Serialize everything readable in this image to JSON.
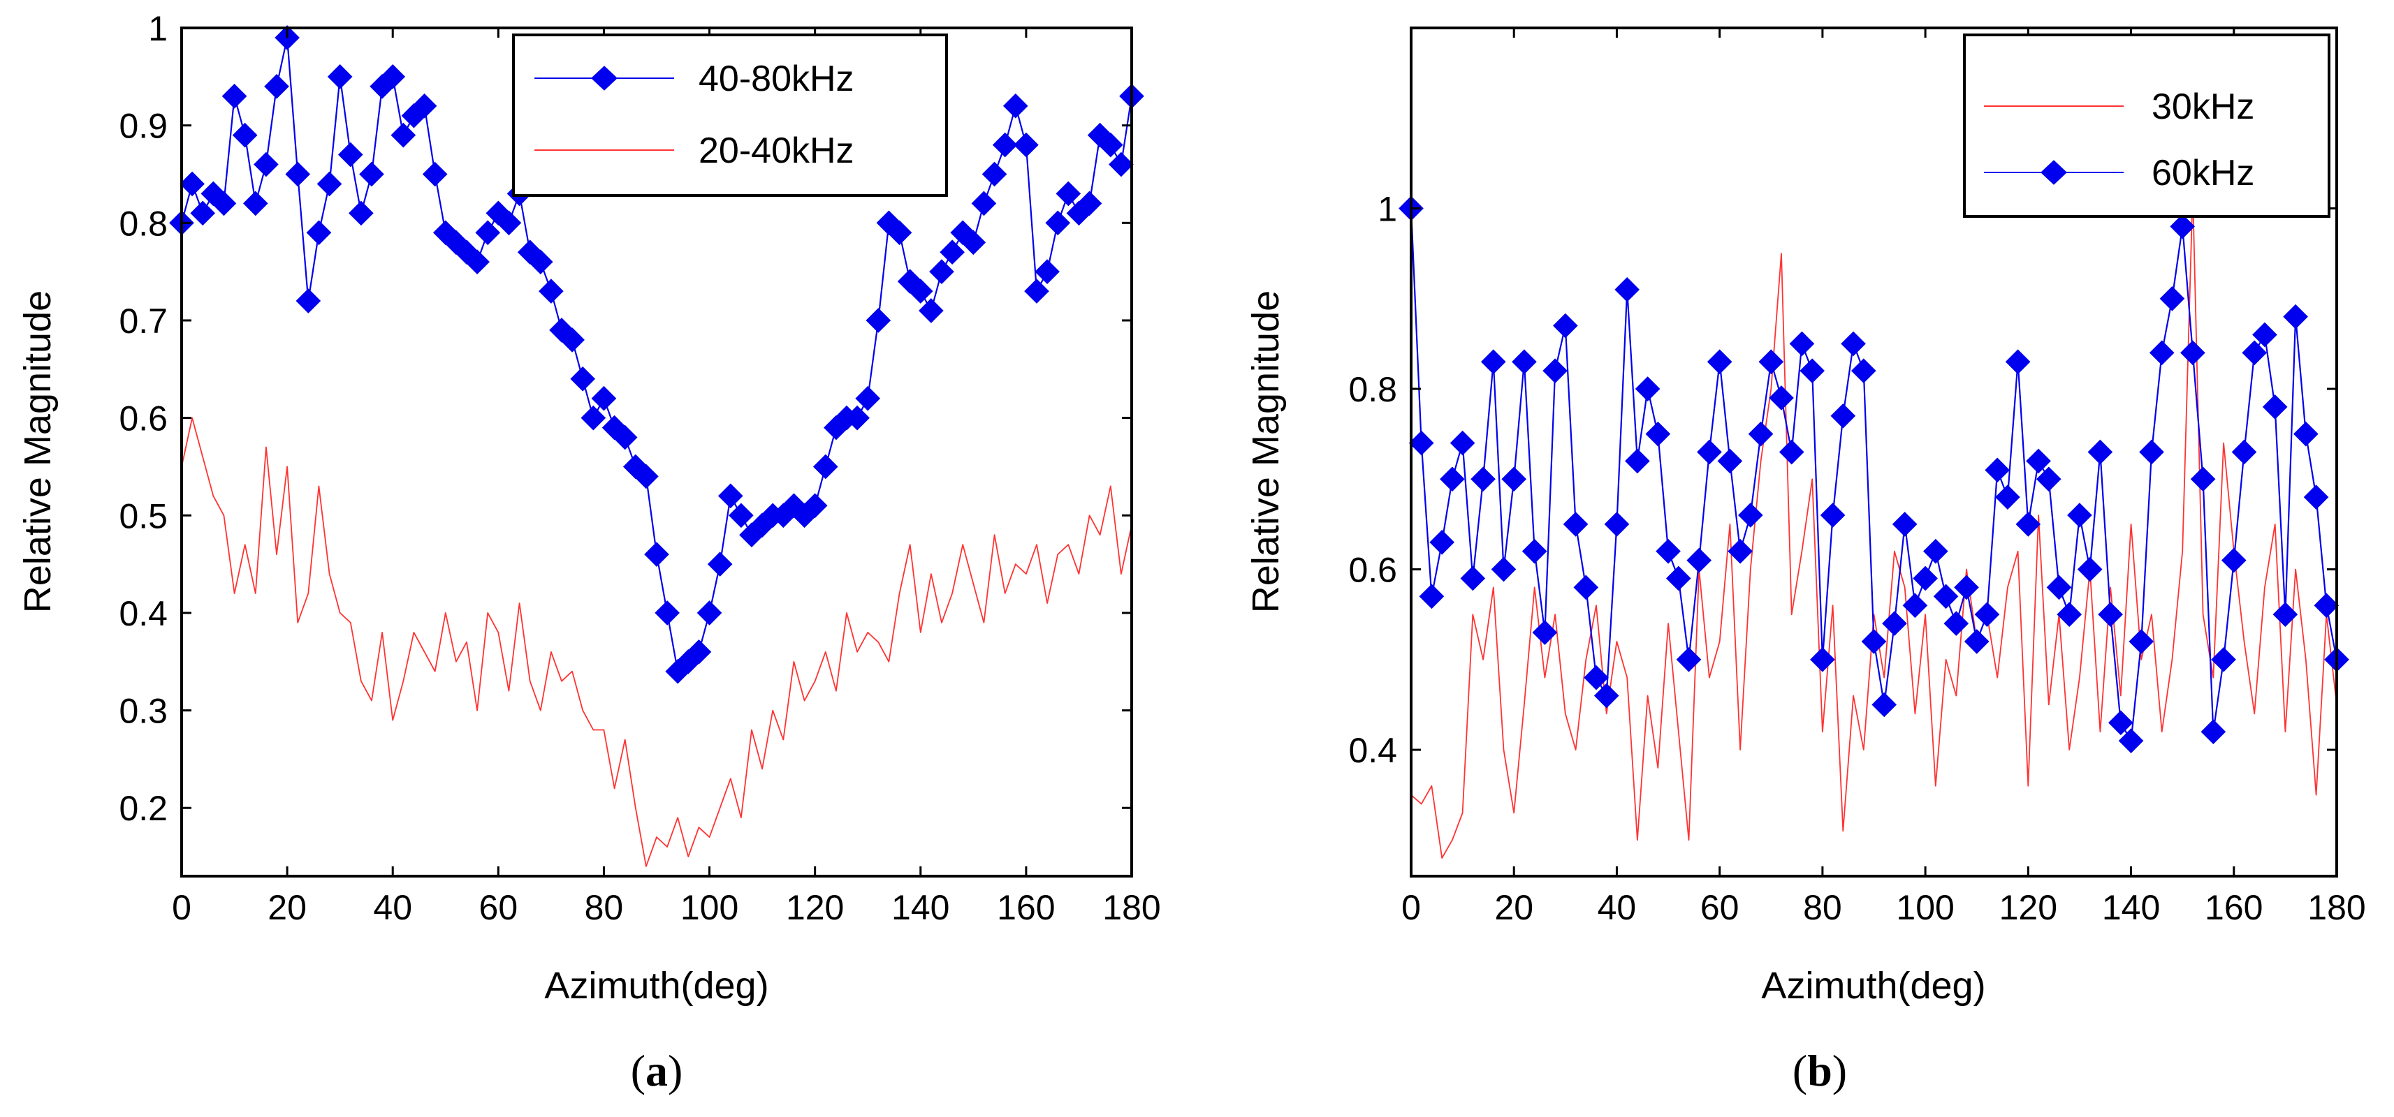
{
  "chart_data": [
    {
      "type": "line",
      "caption": {
        "open": "(",
        "letter": "a",
        "close": ")"
      },
      "xlabel": "Azimuth(deg)",
      "ylabel": "Relative Magnitude",
      "xlim": [
        0,
        180
      ],
      "ylim": [
        0.13,
        1.0
      ],
      "xticks": [
        0,
        20,
        40,
        60,
        80,
        100,
        120,
        140,
        160,
        180
      ],
      "yticks": [
        0.2,
        0.3,
        0.4,
        0.5,
        0.6,
        0.7,
        0.8,
        0.9,
        1
      ],
      "ytick_labels": [
        "0.2",
        "0.3",
        "0.4",
        "0.5",
        "0.6",
        "0.7",
        "0.8",
        "0.9",
        "1"
      ],
      "legend_position": "top-right",
      "series": [
        {
          "name": "40-80kHz",
          "color": "#0000ee",
          "marker": "diamond",
          "x": [
            0,
            2,
            4,
            6,
            8,
            10,
            12,
            14,
            16,
            18,
            20,
            22,
            24,
            26,
            28,
            30,
            32,
            34,
            36,
            38,
            40,
            42,
            44,
            46,
            48,
            50,
            52,
            54,
            56,
            58,
            60,
            62,
            64,
            66,
            68,
            70,
            72,
            74,
            76,
            78,
            80,
            82,
            84,
            86,
            88,
            90,
            92,
            94,
            96,
            98,
            100,
            102,
            104,
            106,
            108,
            110,
            112,
            114,
            116,
            118,
            120,
            122,
            124,
            126,
            128,
            130,
            132,
            134,
            136,
            138,
            140,
            142,
            144,
            146,
            148,
            150,
            152,
            154,
            156,
            158,
            160,
            162,
            164,
            166,
            168,
            170,
            172,
            174,
            176,
            178,
            180
          ],
          "values": [
            0.8,
            0.84,
            0.81,
            0.83,
            0.82,
            0.93,
            0.89,
            0.82,
            0.86,
            0.94,
            0.99,
            0.85,
            0.72,
            0.79,
            0.84,
            0.95,
            0.87,
            0.81,
            0.85,
            0.94,
            0.95,
            0.89,
            0.91,
            0.92,
            0.85,
            0.79,
            0.78,
            0.77,
            0.76,
            0.79,
            0.81,
            0.8,
            0.83,
            0.77,
            0.76,
            0.73,
            0.69,
            0.68,
            0.64,
            0.6,
            0.62,
            0.59,
            0.58,
            0.55,
            0.54,
            0.46,
            0.4,
            0.34,
            0.35,
            0.36,
            0.4,
            0.45,
            0.52,
            0.5,
            0.48,
            0.49,
            0.5,
            0.5,
            0.51,
            0.5,
            0.51,
            0.55,
            0.59,
            0.6,
            0.6,
            0.62,
            0.7,
            0.8,
            0.79,
            0.74,
            0.73,
            0.71,
            0.75,
            0.77,
            0.79,
            0.78,
            0.82,
            0.85,
            0.88,
            0.92,
            0.88,
            0.73,
            0.75,
            0.8,
            0.83,
            0.81,
            0.82,
            0.89,
            0.88,
            0.86,
            0.93
          ]
        },
        {
          "name": "20-40kHz",
          "color": "#ff3333",
          "marker": "none",
          "x": [
            0,
            2,
            4,
            6,
            8,
            10,
            12,
            14,
            16,
            18,
            20,
            22,
            24,
            26,
            28,
            30,
            32,
            34,
            36,
            38,
            40,
            42,
            44,
            46,
            48,
            50,
            52,
            54,
            56,
            58,
            60,
            62,
            64,
            66,
            68,
            70,
            72,
            74,
            76,
            78,
            80,
            82,
            84,
            86,
            88,
            90,
            92,
            94,
            96,
            98,
            100,
            102,
            104,
            106,
            108,
            110,
            112,
            114,
            116,
            118,
            120,
            122,
            124,
            126,
            128,
            130,
            132,
            134,
            136,
            138,
            140,
            142,
            144,
            146,
            148,
            150,
            152,
            154,
            156,
            158,
            160,
            162,
            164,
            166,
            168,
            170,
            172,
            174,
            176,
            178,
            180
          ],
          "values": [
            0.55,
            0.6,
            0.56,
            0.52,
            0.5,
            0.42,
            0.47,
            0.42,
            0.57,
            0.46,
            0.55,
            0.39,
            0.42,
            0.53,
            0.44,
            0.4,
            0.39,
            0.33,
            0.31,
            0.38,
            0.29,
            0.33,
            0.38,
            0.36,
            0.34,
            0.4,
            0.35,
            0.37,
            0.3,
            0.4,
            0.38,
            0.32,
            0.41,
            0.33,
            0.3,
            0.36,
            0.33,
            0.34,
            0.3,
            0.28,
            0.28,
            0.22,
            0.27,
            0.2,
            0.14,
            0.17,
            0.16,
            0.19,
            0.15,
            0.18,
            0.17,
            0.2,
            0.23,
            0.19,
            0.28,
            0.24,
            0.3,
            0.27,
            0.35,
            0.31,
            0.33,
            0.36,
            0.32,
            0.4,
            0.36,
            0.38,
            0.37,
            0.35,
            0.42,
            0.47,
            0.38,
            0.44,
            0.39,
            0.42,
            0.47,
            0.43,
            0.39,
            0.48,
            0.42,
            0.45,
            0.44,
            0.47,
            0.41,
            0.46,
            0.47,
            0.44,
            0.5,
            0.48,
            0.53,
            0.44,
            0.49
          ]
        }
      ]
    },
    {
      "type": "line",
      "caption": {
        "open": "(",
        "letter": "b",
        "close": ")"
      },
      "xlabel": "Azimuth(deg)",
      "ylabel": "Relative Magnitude",
      "xlim": [
        0,
        180
      ],
      "ylim": [
        0.26,
        1.2
      ],
      "xticks": [
        0,
        20,
        40,
        60,
        80,
        100,
        120,
        140,
        160,
        180
      ],
      "yticks": [
        0.4,
        0.6,
        0.8,
        1.0
      ],
      "ytick_labels": [
        "0.4",
        "0.6",
        "0.8",
        "1"
      ],
      "legend_position": "top-right",
      "series": [
        {
          "name": "30kHz",
          "color": "#ff3333",
          "marker": "none",
          "x": [
            0,
            2,
            4,
            6,
            8,
            10,
            12,
            14,
            16,
            18,
            20,
            22,
            24,
            26,
            28,
            30,
            32,
            34,
            36,
            38,
            40,
            42,
            44,
            46,
            48,
            50,
            52,
            54,
            56,
            58,
            60,
            62,
            64,
            66,
            68,
            70,
            72,
            74,
            76,
            78,
            80,
            82,
            84,
            86,
            88,
            90,
            92,
            94,
            96,
            98,
            100,
            102,
            104,
            106,
            108,
            110,
            112,
            114,
            116,
            118,
            120,
            122,
            124,
            126,
            128,
            130,
            132,
            134,
            136,
            138,
            140,
            142,
            144,
            146,
            148,
            150,
            152,
            154,
            156,
            158,
            160,
            162,
            164,
            166,
            168,
            170,
            172,
            174,
            176,
            178,
            180
          ],
          "values": [
            0.35,
            0.34,
            0.36,
            0.28,
            0.3,
            0.33,
            0.55,
            0.5,
            0.58,
            0.4,
            0.33,
            0.45,
            0.58,
            0.48,
            0.55,
            0.44,
            0.4,
            0.5,
            0.56,
            0.44,
            0.52,
            0.48,
            0.3,
            0.46,
            0.38,
            0.54,
            0.42,
            0.3,
            0.6,
            0.48,
            0.52,
            0.65,
            0.4,
            0.6,
            0.72,
            0.8,
            0.95,
            0.55,
            0.62,
            0.7,
            0.42,
            0.56,
            0.31,
            0.46,
            0.4,
            0.55,
            0.48,
            0.62,
            0.58,
            0.44,
            0.55,
            0.36,
            0.5,
            0.46,
            0.6,
            0.52,
            0.55,
            0.48,
            0.58,
            0.62,
            0.36,
            0.66,
            0.45,
            0.55,
            0.4,
            0.48,
            0.6,
            0.42,
            0.58,
            0.46,
            0.65,
            0.5,
            0.55,
            0.42,
            0.5,
            0.62,
            1.02,
            0.55,
            0.48,
            0.74,
            0.62,
            0.52,
            0.44,
            0.58,
            0.65,
            0.42,
            0.6,
            0.5,
            0.35,
            0.55,
            0.45
          ]
        },
        {
          "name": "60kHz",
          "color": "#0000ee",
          "marker": "diamond",
          "x": [
            0,
            2,
            4,
            6,
            8,
            10,
            12,
            14,
            16,
            18,
            20,
            22,
            24,
            26,
            28,
            30,
            32,
            34,
            36,
            38,
            40,
            42,
            44,
            46,
            48,
            50,
            52,
            54,
            56,
            58,
            60,
            62,
            64,
            66,
            68,
            70,
            72,
            74,
            76,
            78,
            80,
            82,
            84,
            86,
            88,
            90,
            92,
            94,
            96,
            98,
            100,
            102,
            104,
            106,
            108,
            110,
            112,
            114,
            116,
            118,
            120,
            122,
            124,
            126,
            128,
            130,
            132,
            134,
            136,
            138,
            140,
            142,
            144,
            146,
            148,
            150,
            152,
            154,
            156,
            158,
            160,
            162,
            164,
            166,
            168,
            170,
            172,
            174,
            176,
            178,
            180
          ],
          "values": [
            1.0,
            0.74,
            0.57,
            0.63,
            0.7,
            0.74,
            0.59,
            0.7,
            0.83,
            0.6,
            0.7,
            0.83,
            0.62,
            0.53,
            0.82,
            0.87,
            0.65,
            0.58,
            0.48,
            0.46,
            0.65,
            0.91,
            0.72,
            0.8,
            0.75,
            0.62,
            0.59,
            0.5,
            0.61,
            0.73,
            0.83,
            0.72,
            0.62,
            0.66,
            0.75,
            0.83,
            0.79,
            0.73,
            0.85,
            0.82,
            0.5,
            0.66,
            0.77,
            0.85,
            0.82,
            0.52,
            0.45,
            0.54,
            0.65,
            0.56,
            0.59,
            0.62,
            0.57,
            0.54,
            0.58,
            0.52,
            0.55,
            0.71,
            0.68,
            0.83,
            0.65,
            0.72,
            0.7,
            0.58,
            0.55,
            0.66,
            0.6,
            0.73,
            0.55,
            0.43,
            0.41,
            0.52,
            0.73,
            0.84,
            0.9,
            0.98,
            0.84,
            0.7,
            0.42,
            0.5,
            0.61,
            0.73,
            0.84,
            0.86,
            0.78,
            0.55,
            0.88,
            0.75,
            0.68,
            0.56,
            0.5
          ]
        }
      ]
    }
  ]
}
